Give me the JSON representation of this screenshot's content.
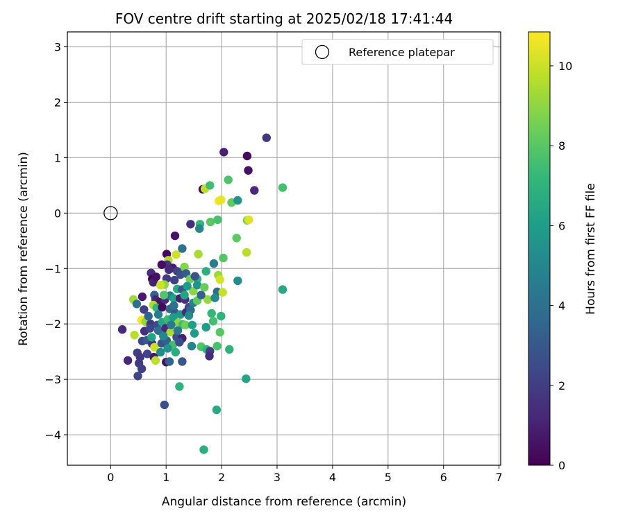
{
  "chart_data": {
    "type": "scatter",
    "title": "FOV centre drift starting at 2025/02/18 17:41:44",
    "xlabel": "Angular distance from reference (arcmin)",
    "ylabel": "Rotation from reference (arcmin)",
    "xlim": [
      -0.78,
      7.03
    ],
    "ylim": [
      -4.55,
      3.27
    ],
    "xticks": [
      "0",
      "1",
      "2",
      "3",
      "4",
      "5",
      "6",
      "7"
    ],
    "yticks": [
      "3",
      "2",
      "1",
      "0",
      "−1",
      "−2",
      "−3",
      "−4"
    ],
    "xtick_values": [
      0,
      1,
      2,
      3,
      4,
      5,
      6,
      7
    ],
    "ytick_values": [
      3,
      2,
      1,
      0,
      -1,
      -2,
      -3,
      -4
    ],
    "grid": true,
    "legend": {
      "position": "top-right",
      "entries": [
        "Reference platepar"
      ]
    },
    "reference_point": {
      "x": 0,
      "y": 0
    },
    "colorbar": {
      "label": "Hours from first FF file",
      "range": [
        0,
        10.85
      ],
      "ticks": [
        "0",
        "2",
        "4",
        "6",
        "8",
        "10"
      ],
      "tick_values": [
        0,
        2,
        4,
        6,
        8,
        10
      ],
      "colormap": "viridis",
      "colors": [
        "#440154",
        "#482878",
        "#3e4989",
        "#31688e",
        "#26828e",
        "#1f9e89",
        "#35b779",
        "#6ece58",
        "#b5de2b",
        "#fde725"
      ]
    },
    "series": [
      {
        "points": [
          [
            2.81,
            1.36,
            1.8
          ],
          [
            2.04,
            1.1,
            1.0
          ],
          [
            2.46,
            1.03,
            0.3
          ],
          [
            2.48,
            0.77,
            0.5
          ],
          [
            2.59,
            0.41,
            1.2
          ],
          [
            1.66,
            0.43,
            0.2
          ],
          [
            1.7,
            0.44,
            9.8
          ],
          [
            2.12,
            0.6,
            7.8
          ],
          [
            1.79,
            0.5,
            7.5
          ],
          [
            3.1,
            0.46,
            7.6
          ],
          [
            1.95,
            0.22,
            10.7
          ],
          [
            1.99,
            0.24,
            10.5
          ],
          [
            2.18,
            0.19,
            8.2
          ],
          [
            2.29,
            0.23,
            5.6
          ],
          [
            2.46,
            -0.13,
            8.6
          ],
          [
            2.49,
            -0.12,
            10.3
          ],
          [
            1.44,
            -0.2,
            1.5
          ],
          [
            1.61,
            -0.2,
            7.2
          ],
          [
            1.8,
            -0.16,
            8.0
          ],
          [
            1.93,
            -0.12,
            7.7
          ],
          [
            1.6,
            -0.28,
            5.0
          ],
          [
            1.16,
            -0.41,
            0.6
          ],
          [
            2.27,
            -0.45,
            8.1
          ],
          [
            2.45,
            -0.71,
            9.7
          ],
          [
            1.29,
            -0.64,
            4.0
          ],
          [
            1.01,
            -0.74,
            0.2
          ],
          [
            1.04,
            -0.85,
            9.6
          ],
          [
            1.18,
            -0.75,
            10.1
          ],
          [
            1.58,
            -0.74,
            9.4
          ],
          [
            2.03,
            -0.81,
            7.9
          ],
          [
            1.86,
            -0.91,
            4.6
          ],
          [
            1.02,
            -0.93,
            1.7
          ],
          [
            0.92,
            -0.93,
            0.4
          ],
          [
            1.12,
            -0.99,
            0.9
          ],
          [
            1.05,
            -1.02,
            1.3
          ],
          [
            1.33,
            -0.97,
            8.8
          ],
          [
            0.73,
            -1.08,
            1.4
          ],
          [
            0.75,
            -1.19,
            0.1
          ],
          [
            0.77,
            -1.25,
            1.0
          ],
          [
            0.82,
            -1.15,
            0.5
          ],
          [
            1.01,
            -1.18,
            1.9
          ],
          [
            1.2,
            -1.05,
            2.2
          ],
          [
            1.26,
            -1.11,
            2.7
          ],
          [
            1.36,
            -1.09,
            3.2
          ],
          [
            1.56,
            -1.19,
            7.0
          ],
          [
            1.72,
            -1.05,
            6.8
          ],
          [
            1.43,
            -1.19,
            8.4
          ],
          [
            1.94,
            -1.12,
            9.2
          ],
          [
            1.97,
            -1.2,
            10.2
          ],
          [
            2.29,
            -1.22,
            5.3
          ],
          [
            3.1,
            -1.38,
            6.5
          ],
          [
            0.97,
            -1.29,
            9.0
          ],
          [
            0.9,
            -1.3,
            10.0
          ],
          [
            1.15,
            -1.21,
            2.1
          ],
          [
            1.2,
            -1.37,
            6.6
          ],
          [
            1.29,
            -1.38,
            3.0
          ],
          [
            1.49,
            -1.41,
            8.9
          ],
          [
            1.56,
            -1.3,
            5.6
          ],
          [
            1.69,
            -1.34,
            8.3
          ],
          [
            1.92,
            -1.42,
            3.8
          ],
          [
            2.02,
            -1.43,
            9.9
          ],
          [
            0.57,
            -1.51,
            0.8
          ],
          [
            0.79,
            -1.48,
            3.3
          ],
          [
            0.41,
            -1.56,
            9.3
          ],
          [
            0.47,
            -1.64,
            4.0
          ],
          [
            0.81,
            -1.56,
            1.1
          ],
          [
            0.88,
            -1.61,
            0.6
          ],
          [
            0.98,
            -1.56,
            1.4
          ],
          [
            1.07,
            -1.49,
            4.5
          ],
          [
            1.14,
            -1.54,
            6.2
          ],
          [
            1.25,
            -1.54,
            0.9
          ],
          [
            1.34,
            -1.56,
            1.6
          ],
          [
            1.41,
            -1.7,
            2.5
          ],
          [
            1.49,
            -1.62,
            4.8
          ],
          [
            1.56,
            -1.58,
            8.1
          ],
          [
            1.75,
            -1.56,
            9.1
          ],
          [
            0.6,
            -1.74,
            2.0
          ],
          [
            0.77,
            -1.66,
            9.5
          ],
          [
            0.83,
            -1.71,
            7.1
          ],
          [
            0.93,
            -1.7,
            0.3
          ],
          [
            1.07,
            -1.73,
            3.6
          ],
          [
            1.16,
            -1.8,
            2.9
          ],
          [
            1.26,
            -1.83,
            5.8
          ],
          [
            1.36,
            -1.79,
            1.3
          ],
          [
            1.44,
            -1.75,
            3.7
          ],
          [
            1.82,
            -1.81,
            7.2
          ],
          [
            1.99,
            -1.86,
            7.0
          ],
          [
            0.56,
            -1.93,
            10.6
          ],
          [
            0.63,
            -1.96,
            9.1
          ],
          [
            0.72,
            -2.0,
            1.8
          ],
          [
            0.84,
            -2.02,
            2.5
          ],
          [
            0.93,
            -1.97,
            6.4
          ],
          [
            1.03,
            -1.92,
            7.3
          ],
          [
            1.13,
            -1.88,
            6.0
          ],
          [
            1.22,
            -1.98,
            8.9
          ],
          [
            1.3,
            -2.01,
            7.4
          ],
          [
            1.35,
            -2.02,
            8.5
          ],
          [
            1.72,
            -2.06,
            6.0
          ],
          [
            1.85,
            -1.95,
            7.6
          ],
          [
            0.21,
            -2.1,
            1.2
          ],
          [
            0.43,
            -2.2,
            9.7
          ],
          [
            0.61,
            -2.13,
            1.5
          ],
          [
            0.71,
            -2.08,
            2.3
          ],
          [
            0.86,
            -2.12,
            3.9
          ],
          [
            0.99,
            -2.08,
            1.2
          ],
          [
            1.08,
            -2.15,
            9.4
          ],
          [
            1.19,
            -2.24,
            2.4
          ],
          [
            1.29,
            -2.26,
            1.0
          ],
          [
            1.51,
            -2.17,
            5.8
          ],
          [
            1.97,
            -2.15,
            8.0
          ],
          [
            0.57,
            -2.31,
            2.4
          ],
          [
            0.66,
            -2.29,
            3.1
          ],
          [
            0.75,
            -2.36,
            1.6
          ],
          [
            0.79,
            -2.42,
            10.0
          ],
          [
            0.92,
            -2.35,
            2.8
          ],
          [
            1.01,
            -2.3,
            3.3
          ],
          [
            1.12,
            -2.38,
            7.5
          ],
          [
            1.24,
            -2.33,
            2.6
          ],
          [
            1.46,
            -2.4,
            4.9
          ],
          [
            1.63,
            -2.41,
            7.8
          ],
          [
            1.73,
            -2.46,
            7.1
          ],
          [
            1.79,
            -2.49,
            2.0
          ],
          [
            1.92,
            -2.4,
            7.7
          ],
          [
            2.14,
            -2.46,
            6.9
          ],
          [
            0.48,
            -2.52,
            2.1
          ],
          [
            0.53,
            -2.6,
            1.7
          ],
          [
            0.66,
            -2.54,
            2.2
          ],
          [
            0.78,
            -2.6,
            0.7
          ],
          [
            0.9,
            -2.51,
            5.2
          ],
          [
            1.17,
            -2.51,
            6.7
          ],
          [
            1.78,
            -2.58,
            1.4
          ],
          [
            0.31,
            -2.66,
            1.1
          ],
          [
            0.51,
            -2.71,
            1.9
          ],
          [
            0.81,
            -2.66,
            9.8
          ],
          [
            1.0,
            -2.69,
            0.5
          ],
          [
            1.06,
            -2.68,
            3.4
          ],
          [
            1.29,
            -2.68,
            3.0
          ],
          [
            0.56,
            -2.81,
            2.0
          ],
          [
            0.49,
            -2.94,
            2.2
          ],
          [
            2.44,
            -2.99,
            6.3
          ],
          [
            1.24,
            -3.13,
            7.0
          ],
          [
            0.97,
            -3.46,
            2.7
          ],
          [
            1.91,
            -3.55,
            6.6
          ],
          [
            1.68,
            -4.27,
            6.8
          ],
          [
            1.41,
            -1.85,
            5.2
          ],
          [
            0.68,
            -1.86,
            3.5
          ],
          [
            1.09,
            -2.02,
            4.4
          ],
          [
            0.95,
            -2.22,
            5.0
          ],
          [
            1.33,
            -1.48,
            6.3
          ],
          [
            1.14,
            -1.67,
            4.1
          ],
          [
            0.86,
            -1.83,
            4.7
          ],
          [
            1.47,
            -2.02,
            6.1
          ],
          [
            1.21,
            -2.12,
            4.3
          ],
          [
            0.74,
            -2.24,
            6.2
          ],
          [
            1.03,
            -2.44,
            5.5
          ],
          [
            1.63,
            -1.48,
            3.4
          ],
          [
            1.52,
            -1.14,
            2.8
          ],
          [
            1.38,
            -1.32,
            5.9
          ],
          [
            0.96,
            -1.48,
            7.9
          ],
          [
            1.88,
            -1.53,
            5.1
          ]
        ]
      }
    ]
  }
}
